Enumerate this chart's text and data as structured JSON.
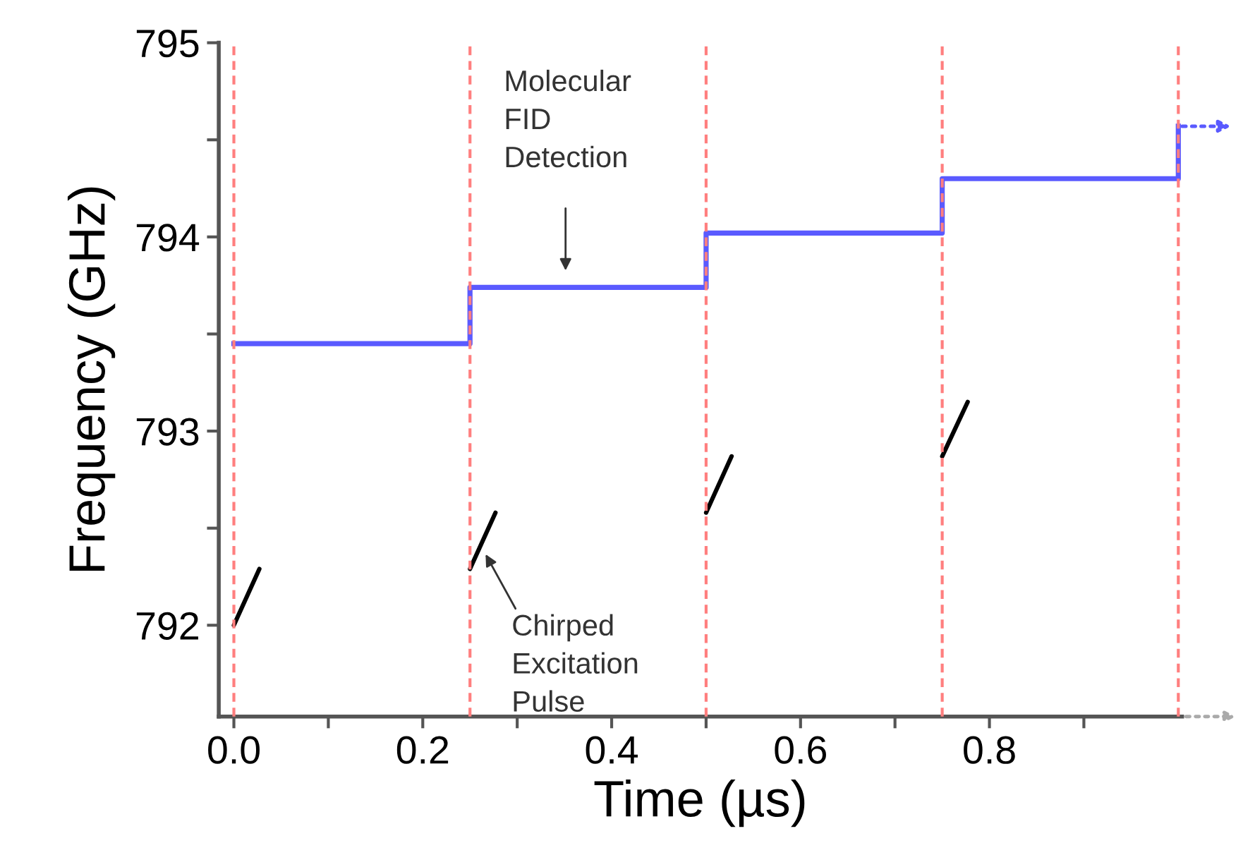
{
  "chart_data": {
    "type": "line",
    "xlabel": "Time (µs)",
    "ylabel": "Frequency (GHz)",
    "xlim": [
      -0.016,
      1.004
    ],
    "ylim": [
      791.53,
      795
    ],
    "xticks": [
      {
        "value": 0,
        "label": "0.0"
      },
      {
        "value": 0.1,
        "label": null
      },
      {
        "value": 0.2,
        "label": "0.2"
      },
      {
        "value": 0.3,
        "label": null
      },
      {
        "value": 0.4,
        "label": "0.4"
      },
      {
        "value": 0.5,
        "label": null
      },
      {
        "value": 0.6,
        "label": "0.6"
      },
      {
        "value": 0.7,
        "label": null
      },
      {
        "value": 0.8,
        "label": "0.8"
      },
      {
        "value": 0.9,
        "label": null
      }
    ],
    "yticks": [
      792,
      {
        "value": 792.5,
        "label": null
      },
      793,
      {
        "value": 793.5,
        "label": null
      },
      794,
      {
        "value": 794.5,
        "label": null
      },
      795
    ],
    "series": [
      {
        "type": "step",
        "color": "#5a5aff",
        "x": [
          0,
          0.25,
          0.5,
          0.75,
          1.0
        ],
        "values": [
          793.45,
          793.74,
          794.02,
          794.3,
          794.57
        ]
      },
      {
        "color": "#000000",
        "x": [
          0,
          0.027
        ],
        "values": [
          792.0,
          792.29
        ]
      },
      {
        "color": "#000000",
        "x": [
          0.25,
          0.277
        ],
        "values": [
          792.29,
          792.58
        ]
      },
      {
        "color": "#000000",
        "x": [
          0.5,
          0.527
        ],
        "values": [
          792.58,
          792.87
        ]
      },
      {
        "color": "#000000",
        "x": [
          0.75,
          0.777
        ],
        "values": [
          792.87,
          793.15
        ]
      }
    ],
    "ref_lines": [
      {
        "axis": "x",
        "value": 0,
        "color": "#ff7f7f",
        "line_style": "dashed"
      },
      {
        "axis": "x",
        "value": 0.25,
        "color": "#ff7f7f",
        "line_style": "dashed"
      },
      {
        "axis": "x",
        "value": 0.5,
        "color": "#ff7f7f",
        "line_style": "dashed"
      },
      {
        "axis": "x",
        "value": 0.75,
        "color": "#ff7f7f",
        "line_style": "dashed"
      },
      {
        "axis": "x",
        "value": 1.0,
        "color": "#ff7f7f",
        "line_style": "dashed"
      }
    ],
    "annotations": [
      "Molecular\nFID\nDetection",
      "Chirped\nExcitation\nPulse"
    ],
    "grid": false
  }
}
